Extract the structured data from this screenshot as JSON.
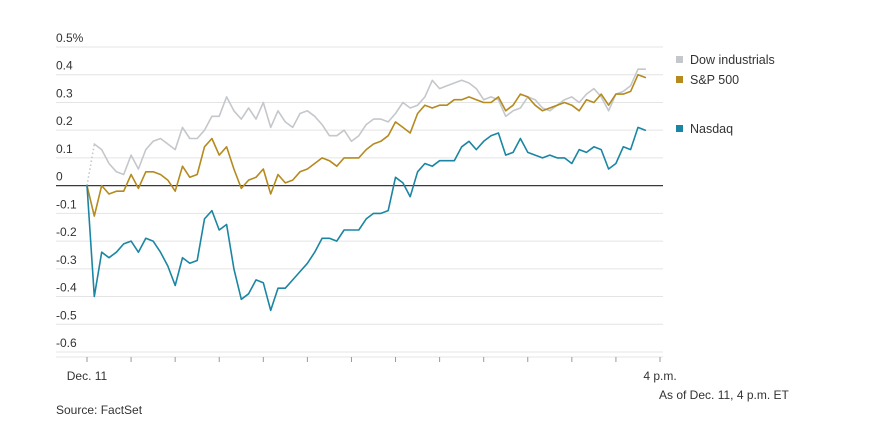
{
  "chart_data": {
    "type": "line",
    "title": "",
    "xlabel": "",
    "ylabel": "",
    "ylim": [
      -0.6,
      0.5
    ],
    "yticks": [
      {
        "value": 0.5,
        "label": "0.5%"
      },
      {
        "value": 0.4,
        "label": "0.4"
      },
      {
        "value": 0.3,
        "label": "0.3"
      },
      {
        "value": 0.2,
        "label": "0.2"
      },
      {
        "value": 0.1,
        "label": "0.1"
      },
      {
        "value": 0.0,
        "label": "0"
      },
      {
        "value": -0.1,
        "label": "-0.1"
      },
      {
        "value": -0.2,
        "label": "-0.2"
      },
      {
        "value": -0.3,
        "label": "-0.3"
      },
      {
        "value": -0.4,
        "label": "-0.4"
      },
      {
        "value": -0.5,
        "label": "-0.5"
      },
      {
        "value": -0.6,
        "label": "-0.6"
      }
    ],
    "xlim": [
      0,
      390
    ],
    "x_interval_minutes": 5,
    "xticks_minutes": [
      0,
      30,
      60,
      90,
      120,
      150,
      180,
      210,
      240,
      270,
      300,
      330,
      360,
      390
    ],
    "xtick_labels": [
      {
        "value": 0,
        "label": "Dec. 11"
      },
      {
        "value": 390,
        "label": "4 p.m."
      }
    ],
    "grid": true,
    "legend_position": "right",
    "series": [
      {
        "name": "Dow industrials",
        "color": "#c4c7cb",
        "values": [
          0.0,
          0.15,
          0.13,
          0.08,
          0.05,
          0.04,
          0.11,
          0.06,
          0.13,
          0.16,
          0.17,
          0.15,
          0.13,
          0.21,
          0.17,
          0.17,
          0.2,
          0.25,
          0.25,
          0.32,
          0.27,
          0.24,
          0.28,
          0.24,
          0.3,
          0.21,
          0.27,
          0.23,
          0.21,
          0.26,
          0.27,
          0.25,
          0.22,
          0.18,
          0.18,
          0.2,
          0.16,
          0.18,
          0.22,
          0.24,
          0.24,
          0.23,
          0.26,
          0.3,
          0.28,
          0.29,
          0.32,
          0.38,
          0.35,
          0.36,
          0.37,
          0.38,
          0.37,
          0.35,
          0.31,
          0.32,
          0.31,
          0.25,
          0.27,
          0.28,
          0.32,
          0.31,
          0.28,
          0.27,
          0.29,
          0.31,
          0.32,
          0.3,
          0.33,
          0.35,
          0.32,
          0.27,
          0.33,
          0.34,
          0.36,
          0.42,
          0.42
        ]
      },
      {
        "name": "S&P 500",
        "color": "#b58a1e",
        "values": [
          0.0,
          -0.11,
          0.0,
          -0.03,
          -0.02,
          -0.02,
          0.04,
          -0.01,
          0.05,
          0.05,
          0.04,
          0.02,
          -0.02,
          0.07,
          0.03,
          0.04,
          0.14,
          0.17,
          0.11,
          0.14,
          0.06,
          -0.01,
          0.02,
          0.03,
          0.06,
          -0.03,
          0.04,
          0.01,
          0.02,
          0.05,
          0.06,
          0.08,
          0.1,
          0.09,
          0.07,
          0.1,
          0.1,
          0.1,
          0.13,
          0.15,
          0.16,
          0.18,
          0.23,
          0.21,
          0.19,
          0.26,
          0.29,
          0.28,
          0.29,
          0.29,
          0.31,
          0.31,
          0.32,
          0.31,
          0.3,
          0.3,
          0.32,
          0.27,
          0.29,
          0.33,
          0.32,
          0.29,
          0.27,
          0.28,
          0.29,
          0.3,
          0.29,
          0.27,
          0.31,
          0.3,
          0.33,
          0.29,
          0.33,
          0.33,
          0.34,
          0.4,
          0.39
        ]
      },
      {
        "name": "Nasdaq",
        "color": "#1b86a3",
        "values": [
          0.0,
          -0.4,
          -0.24,
          -0.26,
          -0.24,
          -0.21,
          -0.2,
          -0.24,
          -0.19,
          -0.2,
          -0.24,
          -0.29,
          -0.36,
          -0.26,
          -0.28,
          -0.27,
          -0.12,
          -0.09,
          -0.16,
          -0.14,
          -0.3,
          -0.41,
          -0.39,
          -0.34,
          -0.35,
          -0.45,
          -0.37,
          -0.37,
          -0.34,
          -0.31,
          -0.28,
          -0.24,
          -0.19,
          -0.19,
          -0.2,
          -0.16,
          -0.16,
          -0.16,
          -0.12,
          -0.1,
          -0.1,
          -0.09,
          0.03,
          0.01,
          -0.04,
          0.05,
          0.08,
          0.07,
          0.09,
          0.09,
          0.09,
          0.14,
          0.16,
          0.13,
          0.16,
          0.18,
          0.19,
          0.11,
          0.12,
          0.17,
          0.12,
          0.11,
          0.1,
          0.11,
          0.1,
          0.1,
          0.08,
          0.13,
          0.12,
          0.14,
          0.13,
          0.06,
          0.08,
          0.14,
          0.13,
          0.21,
          0.2
        ]
      }
    ]
  },
  "footer": {
    "as_of": "As of Dec. 11, 4 p.m. ET",
    "source": "Source: FactSet"
  }
}
